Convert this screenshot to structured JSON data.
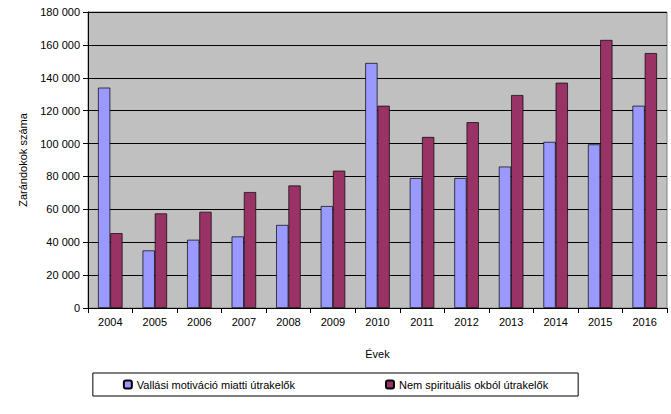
{
  "chart_data": {
    "type": "bar",
    "x_label": "Évek",
    "y_label": "Zarándokok száma",
    "categories": [
      "2004",
      "2005",
      "2006",
      "2007",
      "2008",
      "2009",
      "2010",
      "2011",
      "2012",
      "2013",
      "2014",
      "2015",
      "2016"
    ],
    "series": [
      {
        "name": "Vallási motiváció miatti útrakelők",
        "color": "#9999ff",
        "values": [
          134000,
          35000,
          41500,
          43500,
          50500,
          62000,
          149000,
          79000,
          79000,
          86000,
          101000,
          99500,
          123000
        ]
      },
      {
        "name": "Nem spirituális okból útrakelők",
        "color": "#993366",
        "values": [
          45500,
          57500,
          58500,
          70500,
          74500,
          83500,
          123000,
          104000,
          113000,
          129500,
          137000,
          163000,
          155000
        ]
      }
    ],
    "ylim": [
      0,
      180000
    ],
    "yticks": [
      0,
      {
        "value": 20000,
        "label": "20 000"
      },
      {
        "value": 40000,
        "label": "40 000"
      },
      {
        "value": 60000,
        "label": "60 000"
      },
      {
        "value": 80000,
        "label": "80 000"
      },
      {
        "value": 100000,
        "label": "100 000"
      },
      {
        "value": 120000,
        "label": "120 000"
      },
      {
        "value": 140000,
        "label": "140 000"
      },
      {
        "value": 160000,
        "label": "160 000"
      },
      {
        "value": 180000,
        "label": "180 000"
      }
    ],
    "grid": true,
    "legend": "bottom"
  }
}
